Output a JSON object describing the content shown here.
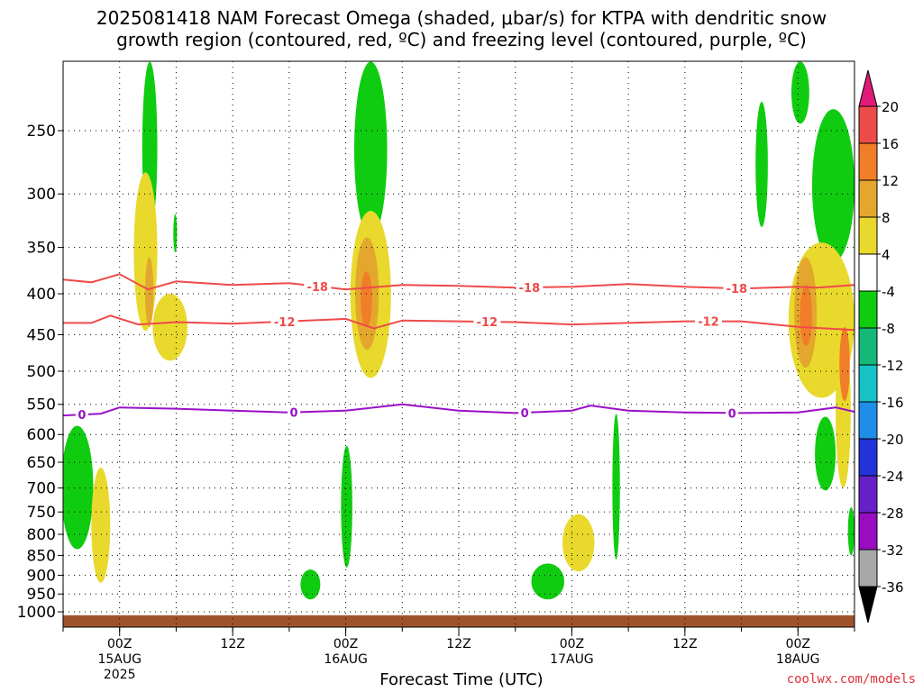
{
  "title": {
    "line1": "2025081418 NAM Forecast Omega (shaded, μbar/s) for KTPA with dendritic snow",
    "line2": "growth region (contoured, red, ºC) and freezing level (contoured, purple, ºC)"
  },
  "credit": "coolwx.com/models",
  "chart_data": {
    "type": "heatmap",
    "title": "2025081418 NAM Forecast Omega (shaded, μbar/s) for KTPA with dendritic snow growth region (contoured, red, ºC) and freezing level (contoured, purple, ºC)",
    "xlabel": "Forecast Time (UTC)",
    "ylabel": "",
    "x_unit": "hours from 2025081418",
    "xlim": [
      0,
      84
    ],
    "y_levels": [
      250,
      300,
      350,
      400,
      450,
      500,
      550,
      600,
      650,
      700,
      750,
      800,
      850,
      900,
      950,
      1000
    ],
    "ylim": [
      1000,
      200
    ],
    "x_ticks": [
      {
        "x": 6,
        "label": "00Z",
        "sub1": "15AUG",
        "sub2": "2025"
      },
      {
        "x": 18,
        "label": "12Z",
        "sub1": "",
        "sub2": ""
      },
      {
        "x": 30,
        "label": "00Z",
        "sub1": "16AUG",
        "sub2": ""
      },
      {
        "x": 42,
        "label": "12Z",
        "sub1": "",
        "sub2": ""
      },
      {
        "x": 54,
        "label": "00Z",
        "sub1": "17AUG",
        "sub2": ""
      },
      {
        "x": 66,
        "label": "12Z",
        "sub1": "",
        "sub2": ""
      },
      {
        "x": 78,
        "label": "00Z",
        "sub1": "18AUG",
        "sub2": ""
      }
    ],
    "colorbar": {
      "labels": [
        "20",
        "16",
        "12",
        "8",
        "4",
        "-4",
        "-8",
        "-12",
        "-16",
        "-20",
        "-24",
        "-28",
        "-32",
        "-36"
      ],
      "colors": [
        "#e8225a",
        "#ef4a4a",
        "#f07e28",
        "#e3a72e",
        "#e9d92c",
        "#ffffff",
        "#10cc10",
        "#15b878",
        "#17c2c8",
        "#1f8ee8",
        "#2233d8",
        "#6620c8",
        "#9a0cc0",
        "#a8a8a8"
      ],
      "top_arrow": "#e01a78",
      "bottom_arrow": "#000000"
    },
    "omega_regions": [
      {
        "value": -6,
        "color": "#10cc10",
        "x": [
          8.4,
          10.0
        ],
        "p": [
          205,
          335
        ]
      },
      {
        "value": -6,
        "color": "#10cc10",
        "x": [
          11.7,
          12.1
        ],
        "p": [
          318,
          355
        ]
      },
      {
        "value": 6,
        "color": "#e9d92c",
        "x": [
          7.5,
          10.0
        ],
        "p": [
          282,
          445
        ]
      },
      {
        "value": 6,
        "color": "#e9d92c",
        "x": [
          9.5,
          13.2
        ],
        "p": [
          400,
          485
        ]
      },
      {
        "value": 10,
        "color": "#e3a72e",
        "x": [
          8.7,
          9.6
        ],
        "p": [
          360,
          440
        ]
      },
      {
        "value": -6,
        "color": "#10cc10",
        "x": [
          -0.2,
          3.2
        ],
        "p": [
          585,
          835
        ]
      },
      {
        "value": 6,
        "color": "#e9d92c",
        "x": [
          3.0,
          5.0
        ],
        "p": [
          660,
          920
        ]
      },
      {
        "value": -6,
        "color": "#10cc10",
        "x": [
          30.9,
          34.4
        ],
        "p": [
          205,
          340
        ]
      },
      {
        "value": 6,
        "color": "#e9d92c",
        "x": [
          30.5,
          34.8
        ],
        "p": [
          315,
          510
        ]
      },
      {
        "value": 10,
        "color": "#e3a72e",
        "x": [
          31.0,
          33.5
        ],
        "p": [
          340,
          470
        ]
      },
      {
        "value": 14,
        "color": "#f07e28",
        "x": [
          31.6,
          32.8
        ],
        "p": [
          375,
          440
        ]
      },
      {
        "value": -6,
        "color": "#10cc10",
        "x": [
          29.5,
          30.7
        ],
        "p": [
          620,
          880
        ]
      },
      {
        "value": -6,
        "color": "#10cc10",
        "x": [
          25.2,
          27.3
        ],
        "p": [
          885,
          965
        ]
      },
      {
        "value": -6,
        "color": "#10cc10",
        "x": [
          49.7,
          53.2
        ],
        "p": [
          870,
          965
        ]
      },
      {
        "value": 6,
        "color": "#e9d92c",
        "x": [
          53.0,
          56.4
        ],
        "p": [
          755,
          890
        ]
      },
      {
        "value": -6,
        "color": "#10cc10",
        "x": [
          58.3,
          59.1
        ],
        "p": [
          565,
          860
        ]
      },
      {
        "value": -6,
        "color": "#10cc10",
        "x": [
          73.5,
          74.8
        ],
        "p": [
          230,
          330
        ]
      },
      {
        "value": -6,
        "color": "#10cc10",
        "x": [
          77.3,
          79.2
        ],
        "p": [
          205,
          245
        ]
      },
      {
        "value": -6,
        "color": "#10cc10",
        "x": [
          79.5,
          84.0
        ],
        "p": [
          235,
          365
        ]
      },
      {
        "value": 6,
        "color": "#e9d92c",
        "x": [
          77.0,
          84.0
        ],
        "p": [
          345,
          540
        ]
      },
      {
        "value": 10,
        "color": "#e3a72e",
        "x": [
          77.6,
          80.0
        ],
        "p": [
          360,
          495
        ]
      },
      {
        "value": 14,
        "color": "#f07e28",
        "x": [
          78.2,
          79.5
        ],
        "p": [
          390,
          465
        ]
      },
      {
        "value": -6,
        "color": "#10cc10",
        "x": [
          79.8,
          82.0
        ],
        "p": [
          570,
          705
        ]
      },
      {
        "value": 6,
        "color": "#e9d92c",
        "x": [
          82.0,
          83.6
        ],
        "p": [
          450,
          700
        ]
      },
      {
        "value": 14,
        "color": "#f07e28",
        "x": [
          82.4,
          83.5
        ],
        "p": [
          440,
          545
        ]
      },
      {
        "value": -6,
        "color": "#10cc10",
        "x": [
          83.3,
          84.0
        ],
        "p": [
          740,
          850
        ]
      }
    ],
    "series": [
      {
        "name": "-18",
        "color": "#ef4a4a",
        "x": [
          0,
          3,
          6,
          9,
          12,
          18,
          24,
          30,
          36,
          42,
          48,
          54,
          60,
          66,
          72,
          78,
          80,
          84
        ],
        "p": [
          384,
          387,
          378,
          395,
          386,
          390,
          388,
          395,
          390,
          391,
          393,
          392,
          389,
          392,
          394,
          392,
          393,
          390
        ],
        "labels": [
          {
            "x": 27,
            "text": "-18"
          },
          {
            "x": 49.5,
            "text": "-18"
          },
          {
            "x": 71.5,
            "text": "-18"
          }
        ]
      },
      {
        "name": "-12",
        "color": "#ef4a4a",
        "x": [
          0,
          3,
          5,
          8,
          12,
          18,
          24,
          30,
          33,
          36,
          42,
          48,
          54,
          60,
          66,
          72,
          78,
          84
        ],
        "p": [
          435,
          435,
          426,
          437,
          434,
          436,
          433,
          430,
          442,
          432,
          433,
          434,
          437,
          435,
          433,
          433,
          440,
          444
        ],
        "labels": [
          {
            "x": 23.5,
            "text": "-12"
          },
          {
            "x": 45,
            "text": "-12"
          },
          {
            "x": 68.5,
            "text": "-12"
          }
        ]
      },
      {
        "name": "0",
        "color": "#9a10c8",
        "x": [
          0,
          4,
          6,
          12,
          18,
          24,
          30,
          36,
          42,
          48,
          54,
          56,
          60,
          66,
          72,
          78,
          82,
          84
        ],
        "p": [
          568,
          565,
          555,
          557,
          560,
          563,
          560,
          550,
          560,
          564,
          560,
          552,
          560,
          563,
          564,
          563,
          555,
          562
        ],
        "labels": [
          {
            "x": 2,
            "text": "0"
          },
          {
            "x": 24.5,
            "text": "0"
          },
          {
            "x": 49,
            "text": "0"
          },
          {
            "x": 71,
            "text": "0"
          }
        ]
      }
    ],
    "ground_color": "#a0522d",
    "ground_p": 1010
  }
}
